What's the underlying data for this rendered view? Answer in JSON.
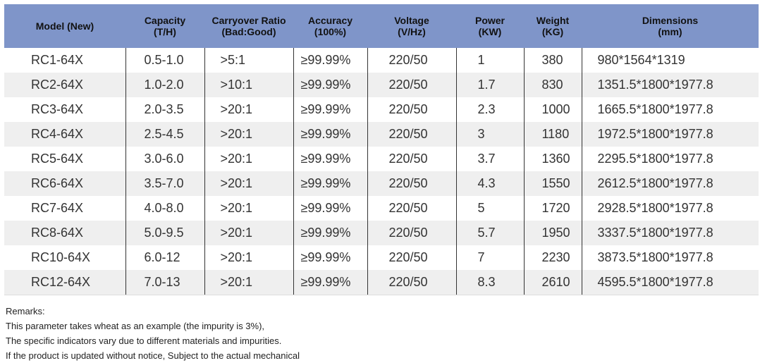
{
  "table": {
    "headers": [
      {
        "l1": "Model (New)",
        "l2": ""
      },
      {
        "l1": "Capacity",
        "l2": "(T/H)"
      },
      {
        "l1": "Carryover Ratio",
        "l2": "(Bad:Good)"
      },
      {
        "l1": "Accuracy",
        "l2": "(100%)"
      },
      {
        "l1": "Voltage",
        "l2": "(V/Hz)"
      },
      {
        "l1": "Power",
        "l2": "(KW)"
      },
      {
        "l1": "Weight",
        "l2": "(KG)"
      },
      {
        "l1": "Dimensions",
        "l2": "(mm)"
      }
    ],
    "rows": [
      [
        "RC1-64X",
        "0.5-1.0",
        ">5:1",
        "≥99.99%",
        "220/50",
        "1",
        "380",
        "980*1564*1319"
      ],
      [
        "RC2-64X",
        "1.0-2.0",
        ">10:1",
        "≥99.99%",
        "220/50",
        "1.7",
        "830",
        "1351.5*1800*1977.8"
      ],
      [
        "RC3-64X",
        "2.0-3.5",
        ">20:1",
        "≥99.99%",
        "220/50",
        "2.3",
        "1000",
        "1665.5*1800*1977.8"
      ],
      [
        "RC4-64X",
        "2.5-4.5",
        ">20:1",
        "≥99.99%",
        "220/50",
        "3",
        "1180",
        "1972.5*1800*1977.8"
      ],
      [
        "RC5-64X",
        "3.0-6.0",
        ">20:1",
        "≥99.99%",
        "220/50",
        "3.7",
        "1360",
        "2295.5*1800*1977.8"
      ],
      [
        "RC6-64X",
        "3.5-7.0",
        ">20:1",
        "≥99.99%",
        "220/50",
        "4.3",
        "1550",
        "2612.5*1800*1977.8"
      ],
      [
        "RC7-64X",
        "4.0-8.0",
        ">20:1",
        "≥99.99%",
        "220/50",
        "5",
        "1720",
        "2928.5*1800*1977.8"
      ],
      [
        "RC8-64X",
        "5.0-9.5",
        ">20:1",
        "≥99.99%",
        "220/50",
        "5.7",
        "1950",
        "3337.5*1800*1977.8"
      ],
      [
        "RC10-64X",
        "6.0-12",
        ">20:1",
        "≥99.99%",
        "220/50",
        "7",
        "2230",
        "3873.5*1800*1977.8"
      ],
      [
        "RC12-64X",
        "7.0-13",
        ">20:1",
        "≥99.99%",
        "220/50",
        "8.3",
        "2610",
        "4595.5*1800*1977.8"
      ]
    ]
  },
  "remarks": {
    "title": "Remarks:",
    "lines": [
      "This parameter takes wheat as an example (the impurity is 3%),",
      "The specific indicators vary due to different materials and impurities.",
      "If the product is updated without notice, Subject to the actual mechanical"
    ]
  },
  "colors": {
    "header_bg": "#7f95c9",
    "alt_row_bg": "#efefef",
    "divider": "#333333"
  }
}
